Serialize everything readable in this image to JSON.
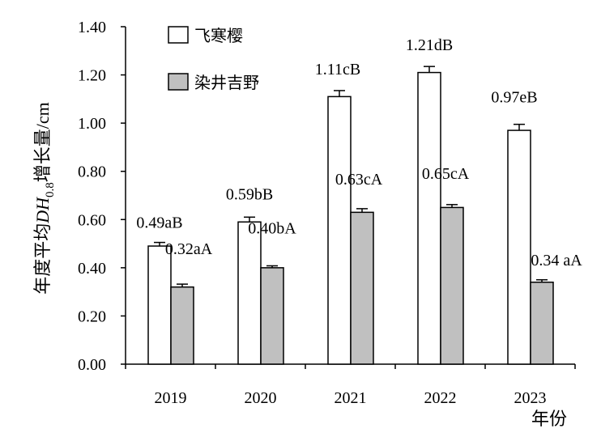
{
  "chart_data": {
    "type": "bar",
    "categories": [
      "2019",
      "2020",
      "2021",
      "2022",
      "2023"
    ],
    "series": [
      {
        "name": "飞寒樱",
        "values": [
          0.49,
          0.59,
          1.11,
          1.21,
          0.97
        ],
        "errors": [
          0.015,
          0.02,
          0.025,
          0.025,
          0.025
        ],
        "labels": [
          "0.49aB",
          "0.59bB",
          "1.11cB",
          "1.21dB",
          "0.97eB"
        ],
        "color": "#ffffff"
      },
      {
        "name": "染井吉野",
        "values": [
          0.32,
          0.4,
          0.63,
          0.65,
          0.34
        ],
        "errors": [
          0.012,
          0.008,
          0.015,
          0.012,
          0.01
        ],
        "labels": [
          "0.32aA",
          "0.40bA",
          "0.63cA",
          "0.65cA",
          "0.34 aA"
        ],
        "color": "#c0c0c0"
      }
    ],
    "yticks": [
      "0.00",
      "0.20",
      "0.40",
      "0.60",
      "0.80",
      "1.00",
      "1.20",
      "1.40"
    ],
    "ylim": [
      0,
      1.4
    ],
    "ylabel_parts": {
      "before": "年度平均",
      "var": "DH",
      "sub": "0.8",
      "after": "增长量/cm"
    },
    "xlabel": "年份",
    "legend_position": "top-left",
    "grid": false
  }
}
